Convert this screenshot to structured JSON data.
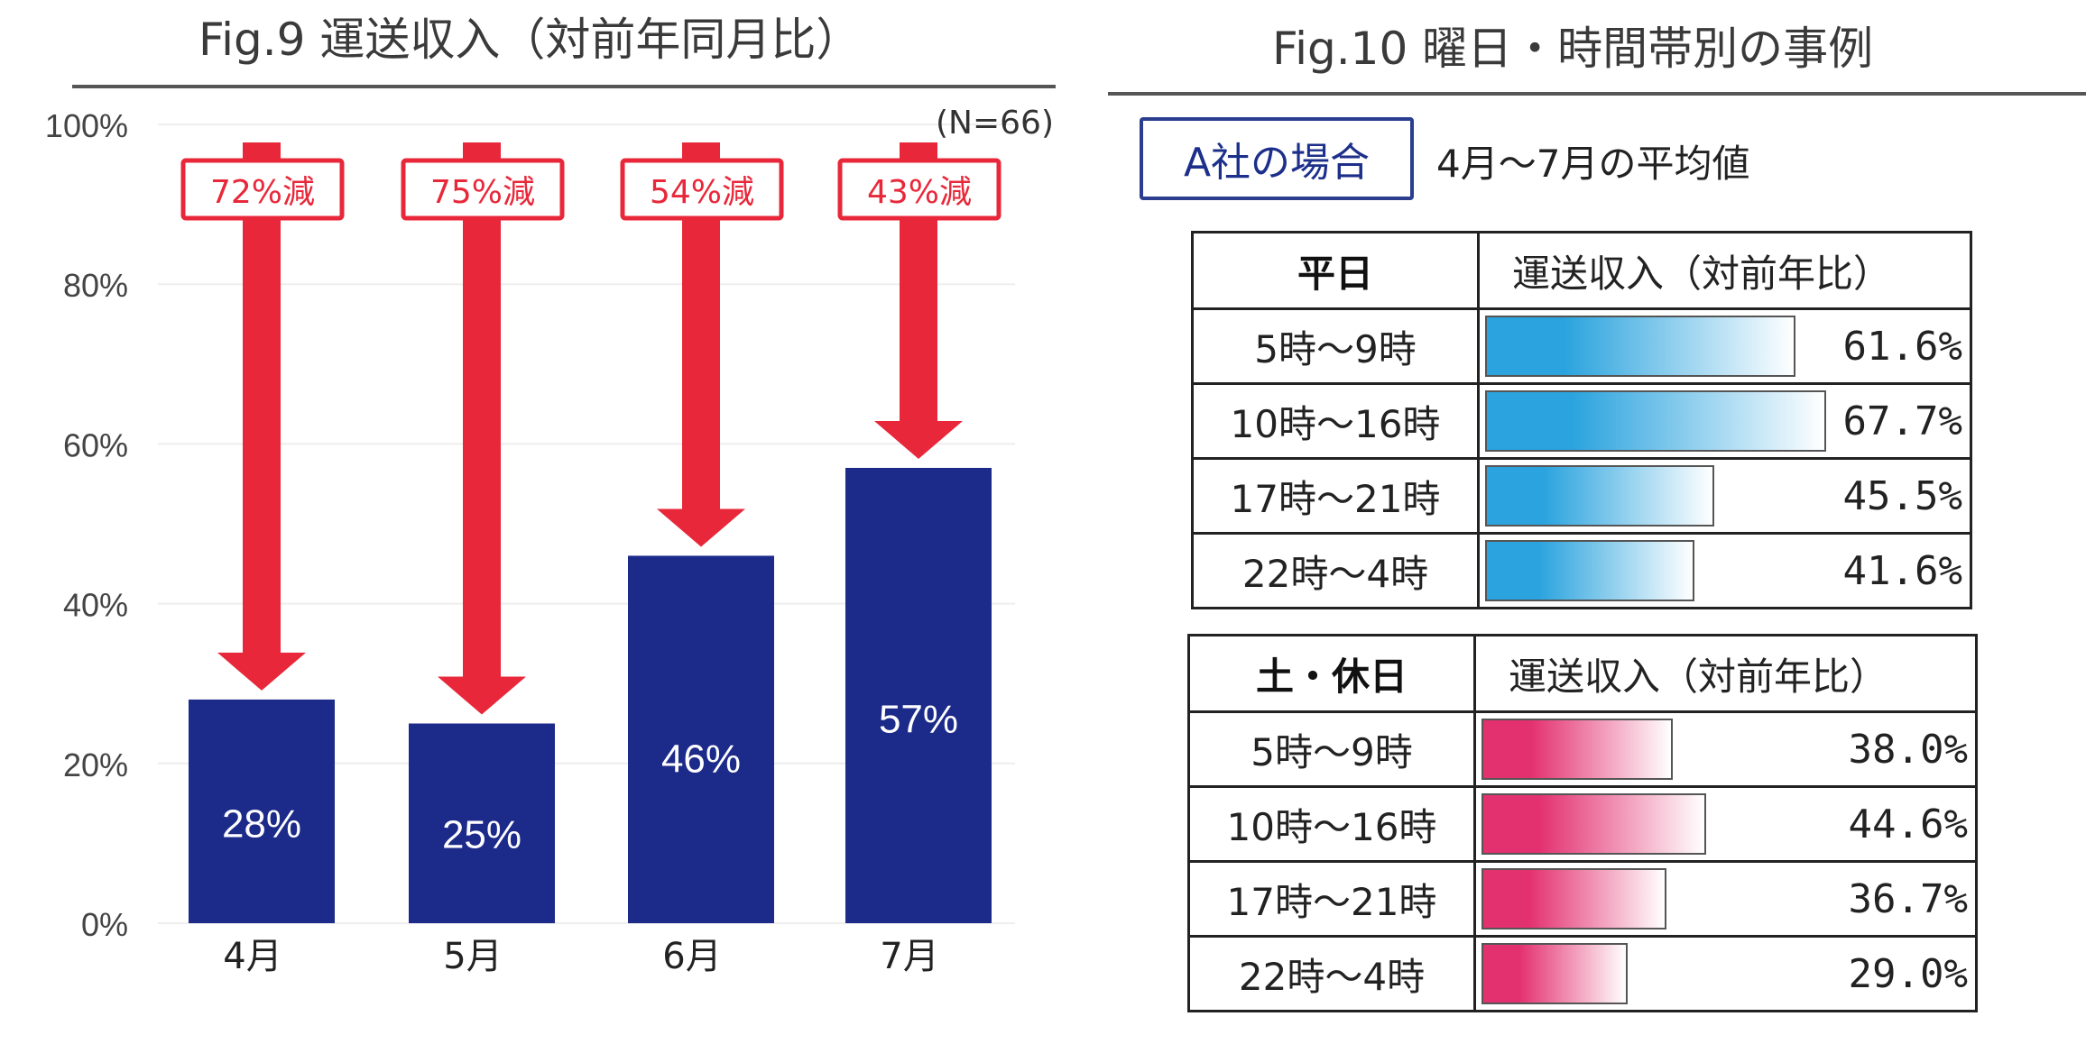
{
  "fig9": {
    "title": "Fig.9 運送収入（対前年同月比）",
    "note": "(N=66)",
    "chart_data": {
      "type": "bar",
      "title": "Fig.9 運送収入（対前年同月比）",
      "categories": [
        "4月",
        "5月",
        "6月",
        "7月"
      ],
      "values": [
        28,
        25,
        46,
        57
      ],
      "value_labels": [
        "28%",
        "25%",
        "46%",
        "57%"
      ],
      "decrease_labels": [
        "72%減",
        "75%減",
        "54%減",
        "43%減"
      ],
      "ylim": [
        0,
        100
      ],
      "y_ticks": [
        "0%",
        "20%",
        "40%",
        "60%",
        "80%",
        "100%"
      ],
      "y_tick_values": [
        0,
        20,
        40,
        60,
        80,
        100
      ],
      "grid": true,
      "bar_color": "#1c2a8a",
      "arrow_color": "#e8283a"
    }
  },
  "fig10": {
    "title": "Fig.10 曜日・時間帯別の事例",
    "badge": "A社の場合",
    "subnote": "4月～7月の平均値",
    "chart_data": {
      "type": "table",
      "tables": [
        {
          "header": "平日",
          "value_header": "運送収入（対前年比）",
          "rows": [
            {
              "label": "5時～9時",
              "value": 61.6,
              "text": "61.6%"
            },
            {
              "label": "10時～16時",
              "value": 67.7,
              "text": "67.7%"
            },
            {
              "label": "17時～21時",
              "value": 45.5,
              "text": "45.5%"
            },
            {
              "label": "22時～4時",
              "value": 41.6,
              "text": "41.6%"
            }
          ],
          "bar_color": "#2aa3de"
        },
        {
          "header": "土・休日",
          "value_header": "運送収入（対前年比）",
          "rows": [
            {
              "label": "5時～9時",
              "value": 38.0,
              "text": "38.0%"
            },
            {
              "label": "10時～16時",
              "value": 44.6,
              "text": "44.6%"
            },
            {
              "label": "17時～21時",
              "value": 36.7,
              "text": "36.7%"
            },
            {
              "label": "22時～4時",
              "value": 29.0,
              "text": "29.0%"
            }
          ],
          "bar_color": "#e3306f"
        }
      ]
    }
  }
}
